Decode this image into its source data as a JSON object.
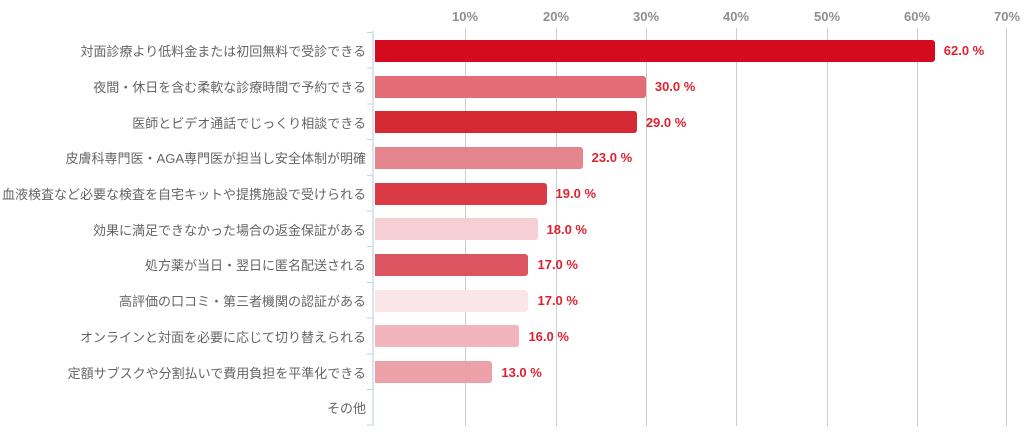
{
  "chart_data": {
    "type": "bar",
    "orientation": "horizontal",
    "title": "",
    "categories": [
      "対面診療より低料金または初回無料で受診できる",
      "夜間・休日を含む柔軟な診療時間で予約できる",
      "医師とビデオ通話でじっくり相談できる",
      "皮膚科専門医・AGA専門医が担当し安全体制が明確",
      "血液検査など必要な検査を自宅キットや提携施設で受けられる",
      "効果に満足できなかった場合の返金保証がある",
      "処方薬が当日・翌日に匿名配送される",
      "高評価の口コミ・第三者機関の認証がある",
      "オンラインと対面を必要に応じて切り替えられる",
      "定額サブスクや分割払いで費用負担を平準化できる",
      "その他"
    ],
    "values": [
      62.0,
      30.0,
      29.0,
      23.0,
      19.0,
      18.0,
      17.0,
      17.0,
      16.0,
      13.0,
      0
    ],
    "value_labels": [
      "62.0 %",
      "30.0 %",
      "29.0 %",
      "23.0 %",
      "19.0 %",
      "18.0 %",
      "17.0 %",
      "17.0 %",
      "16.0 %",
      "13.0 %",
      ""
    ],
    "bar_colors": [
      "#d40b1e",
      "#e26d77",
      "#d42833",
      "#e4858e",
      "#d93a44",
      "#f6cfd5",
      "#dc545f",
      "#fae6e9",
      "#f0b5bb",
      "#eca1a8",
      "#ffffff"
    ],
    "x_tick_labels": [
      "10%",
      "20%",
      "30%",
      "40%",
      "50%",
      "60%",
      "70%"
    ],
    "xlim": [
      0,
      70
    ],
    "grid": true,
    "legend": "none",
    "colors": {
      "value_label": "#dd2230",
      "category_label": "#656565",
      "axis_tick_label": "#8f8f8f",
      "gridline": "#cccccc",
      "axis_line": "#dbe3ee",
      "background": "#ffffff"
    }
  }
}
